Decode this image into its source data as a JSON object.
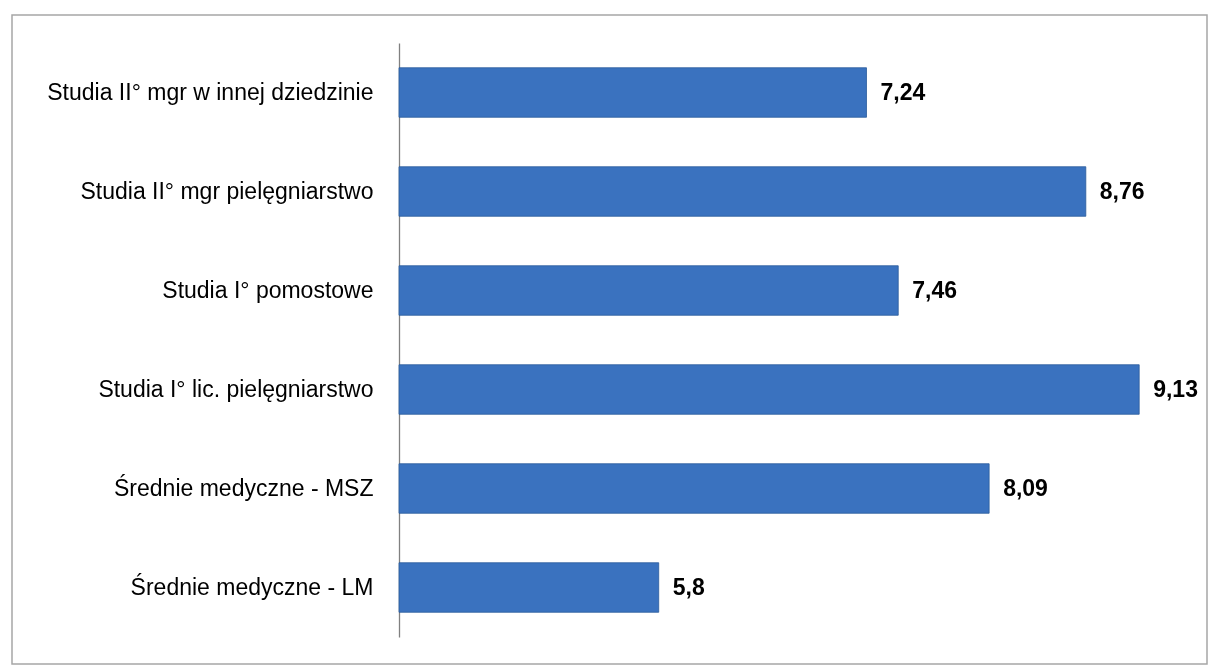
{
  "chart_data": {
    "type": "bar",
    "orientation": "horizontal",
    "categories": [
      "Studia II° mgr w innej dziedzinie",
      "Studia II° mgr pielęgniarstwo",
      "Studia I° pomostowe",
      "Studia I° lic. pielęgniarstwo",
      "Średnie medyczne - MSZ",
      "Średnie medyczne - LM"
    ],
    "values": [
      7.24,
      8.76,
      7.46,
      9.13,
      8.09,
      5.8
    ],
    "value_labels": [
      "7,24",
      "8,76",
      "7,46",
      "9,13",
      "8,09",
      "5,8"
    ],
    "color": "#3a72bf",
    "xlim": [
      4,
      9.6
    ],
    "tick_labels": "y"
  }
}
